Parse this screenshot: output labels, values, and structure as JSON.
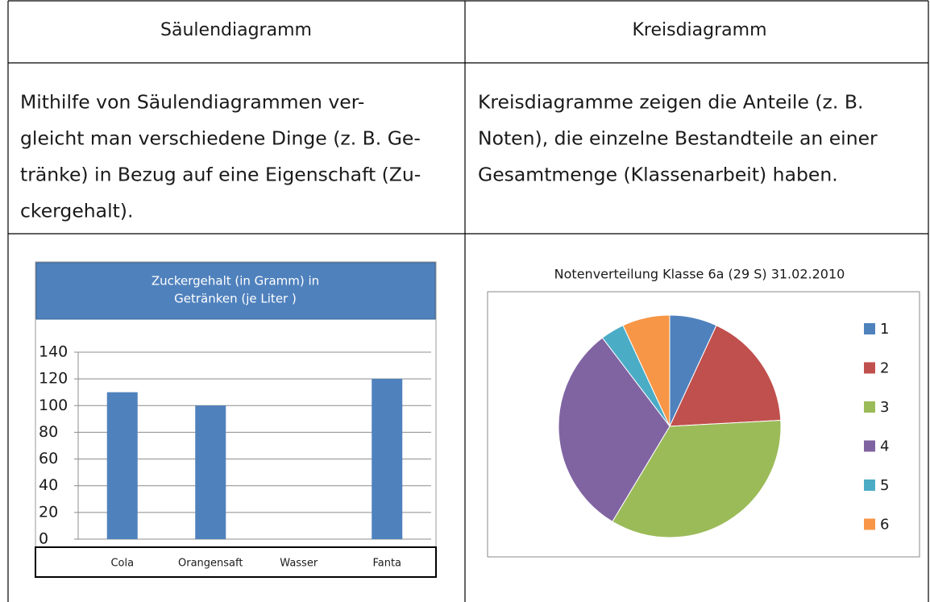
{
  "table": {
    "header": [
      "Säulendiagramm",
      "Kreisdiagramm"
    ],
    "description": [
      [
        "Mithilfe von Säulendiagrammen ver-",
        "gleicht man verschiedene Dinge (z. B. Ge-",
        "tränke) in Bezug auf eine Eigenschaft (Zu-",
        "ckergehalt)."
      ],
      [
        "Kreisdiagramme zeigen die Anteile (z. B.",
        "Noten), die einzelne Bestandteile an einer",
        "Gesamtmenge (Klassenarbeit) haben."
      ]
    ]
  },
  "chart_data": [
    {
      "type": "bar",
      "title": [
        "Zuckergehalt  (in Gramm)  in",
        "Getränken (je Liter )"
      ],
      "categories": [
        "Cola",
        "Orangensaft",
        "Wasser",
        "Fanta"
      ],
      "values": [
        110,
        100,
        0,
        120
      ],
      "color": "#4f81bd",
      "ylim": [
        0,
        140
      ],
      "yticks": [
        0,
        20,
        40,
        60,
        80,
        100,
        120,
        140
      ],
      "grid": true
    },
    {
      "type": "pie",
      "title": "Notenverteilung Klasse 6a (29 S) 31.02.2010",
      "categories": [
        "1",
        "2",
        "3",
        "4",
        "5",
        "6"
      ],
      "values": [
        2,
        5,
        10,
        9,
        1,
        2
      ],
      "colors": [
        "#4f81bd",
        "#c0504d",
        "#9bbb59",
        "#8064a2",
        "#4bacc6",
        "#f79646"
      ],
      "legend": "right"
    }
  ]
}
